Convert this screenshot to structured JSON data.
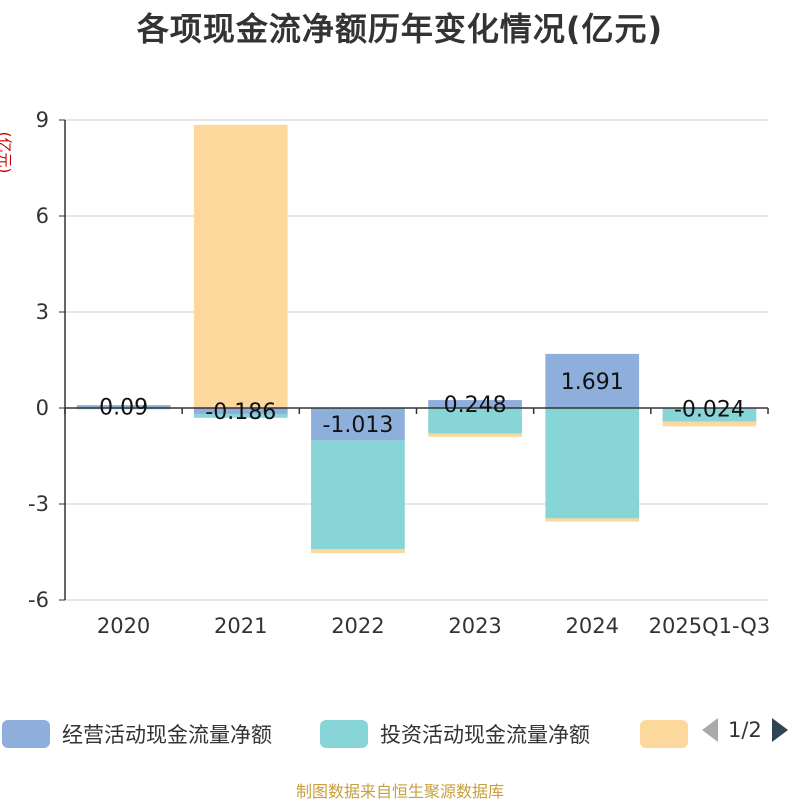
{
  "chart_data": {
    "type": "bar",
    "stacked": true,
    "title": "各项现金流净额历年变化情况(亿元)",
    "ylabel": "(亿元)",
    "categories": [
      "2020",
      "2021",
      "2022",
      "2023",
      "2024",
      "2025Q1-Q3"
    ],
    "ylim": [
      -6,
      9
    ],
    "yticks": [
      -6,
      -3,
      0,
      3,
      6,
      9
    ],
    "grid": true,
    "series": [
      {
        "name": "经营活动现金流量净额",
        "color": "#8eaedb",
        "values": [
          0.09,
          -0.186,
          -1.013,
          0.248,
          1.691,
          -0.024
        ]
      },
      {
        "name": "投资活动现金流量净额",
        "color": "#88d5d8",
        "values": [
          -0.03,
          -0.12,
          -3.4,
          -0.8,
          -3.45,
          -0.4
        ]
      },
      {
        "name": "",
        "color": "#fdd89c",
        "values": [
          -0.02,
          8.85,
          -0.12,
          -0.1,
          -0.1,
          -0.15
        ]
      }
    ],
    "data_labels": [
      "0.09",
      "-0.186",
      "-1.013",
      "0.248",
      "1.691",
      "-0.024"
    ],
    "legend_position": "bottom"
  },
  "legend": {
    "items": [
      {
        "label": "经营活动现金流量净额",
        "color": "#8eaedb"
      },
      {
        "label": "投资活动现金流量净额",
        "color": "#88d5d8"
      },
      {
        "label": "",
        "color": "#fdd89c"
      }
    ],
    "page": "1/2"
  },
  "source": "制图数据来自恒生聚源数据库"
}
